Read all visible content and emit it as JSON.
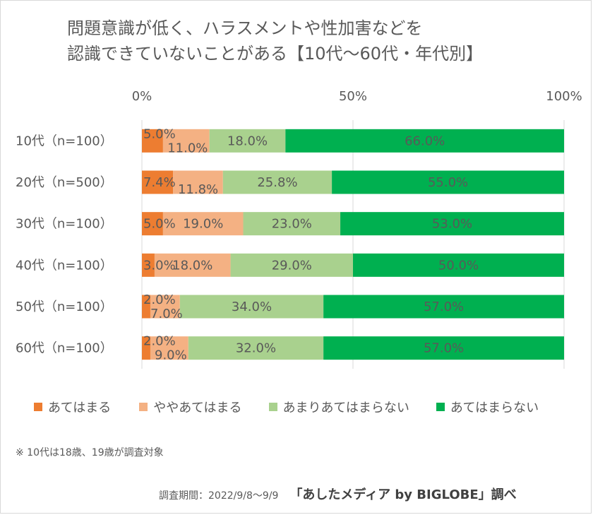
{
  "title_lines": [
    "問題意識が低く、ハラスメントや性加害などを",
    "認識できていないことがある【10代～60代・年代別】"
  ],
  "colors": {
    "s1": "#ED7D31",
    "s2": "#F4B183",
    "s3": "#A9D18E",
    "s4": "#00B050",
    "text": "#595959",
    "grid": "#d9d9d9"
  },
  "chart_data": {
    "type": "bar",
    "orientation": "horizontal",
    "stacked": true,
    "xlim": [
      0,
      100
    ],
    "x_ticks": [
      "0%",
      "50%",
      "100%"
    ],
    "categories": [
      "10代（n=100）",
      "20代（n=500）",
      "30代（n=100）",
      "40代（n=100）",
      "50代（n=100）",
      "60代（n=100）"
    ],
    "series": [
      {
        "name": "あてはまる",
        "values": [
          5.0,
          7.4,
          5.0,
          3.0,
          2.0,
          2.0
        ],
        "labels": [
          "5.0%",
          "7.4%",
          "5.0%",
          "3.0%",
          "2.0%",
          "2.0%"
        ]
      },
      {
        "name": "ややあてはまる",
        "values": [
          11.0,
          11.8,
          19.0,
          18.0,
          7.0,
          9.0
        ],
        "labels": [
          "11.0%",
          "11.8%",
          "19.0%",
          "18.0%",
          "7.0%",
          "9.0%"
        ]
      },
      {
        "name": "あまりあてはまらない",
        "values": [
          18.0,
          25.8,
          23.0,
          29.0,
          34.0,
          32.0
        ],
        "labels": [
          "18.0%",
          "25.8%",
          "23.0%",
          "29.0%",
          "34.0%",
          "32.0%"
        ]
      },
      {
        "name": "あてはまらない",
        "values": [
          66.0,
          55.0,
          53.0,
          50.0,
          57.0,
          57.0
        ],
        "labels": [
          "66.0%",
          "55.0%",
          "53.0%",
          "50.0%",
          "57.0%",
          "57.0%"
        ]
      }
    ],
    "grid": "vertical lines at 0%, 50%, 100%",
    "legend_position": "bottom"
  },
  "note": "※ 10代は18歳、19歳が調査対象",
  "footer": {
    "period": "調査期間：2022/9/8～9/9",
    "source": "「あしたメディア by BIGLOBE」調べ"
  }
}
